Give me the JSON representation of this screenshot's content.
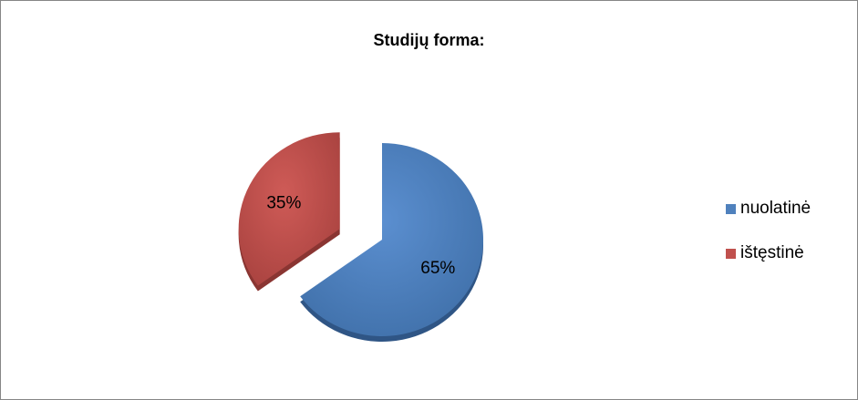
{
  "chart_data": {
    "type": "pie",
    "title": "Studijų forma:",
    "categories": [
      "nuolatinė",
      "ištęstinė"
    ],
    "values": [
      65,
      35
    ],
    "labels": [
      "65%",
      "35%"
    ],
    "colors": [
      "#4f81bd",
      "#c0504d"
    ],
    "exploded": [
      "ištęstinė"
    ],
    "legend": "right"
  }
}
